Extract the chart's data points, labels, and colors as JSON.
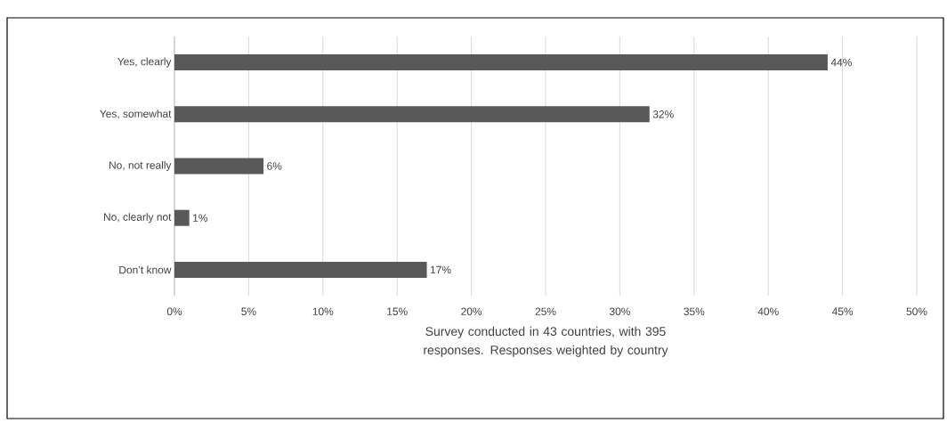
{
  "chart_data": {
    "type": "bar",
    "orientation": "horizontal",
    "categories": [
      "Yes, clearly",
      "Yes, somewhat",
      "No, not really",
      "No, clearly not",
      "Don’t know"
    ],
    "values": [
      44,
      32,
      6,
      1,
      17
    ],
    "color": "#595959",
    "value_labels": [
      "44%",
      "32%",
      "6%",
      "1%",
      "17%"
    ],
    "xlim": [
      0,
      50
    ],
    "xticks": [
      {
        "value": 0,
        "label": "0%"
      },
      {
        "value": 5,
        "label": "5%"
      },
      {
        "value": 10,
        "label": "10%"
      },
      {
        "value": 15,
        "label": "15%"
      },
      {
        "value": 20,
        "label": "20%"
      },
      {
        "value": 25,
        "label": "25%"
      },
      {
        "value": 30,
        "label": "30%"
      },
      {
        "value": 35,
        "label": "35%"
      },
      {
        "value": 40,
        "label": "40%"
      },
      {
        "value": 45,
        "label": "45%"
      },
      {
        "value": 50,
        "label": "50%"
      }
    ],
    "grid": "x",
    "xlabel": "Survey conducted in 43 countries, with 395 responses. Responses weighted by country"
  }
}
